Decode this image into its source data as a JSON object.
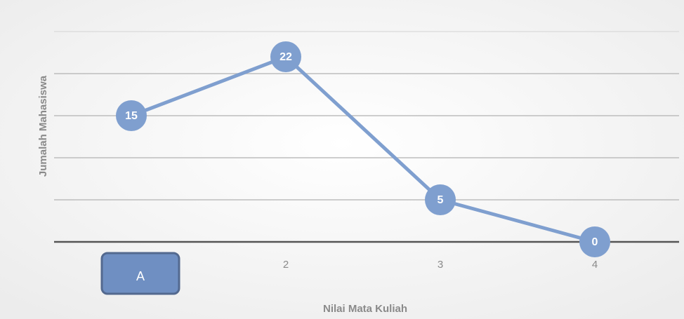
{
  "chart_data": {
    "type": "line",
    "categories": [
      "A",
      "2",
      "3",
      "4"
    ],
    "series": [
      {
        "name": "Jumalah Mahasiswa",
        "color": "#7f9fcf",
        "values": [
          15,
          22,
          5,
          0
        ]
      }
    ],
    "ylim": [
      0,
      25
    ],
    "yticks": [
      0,
      5,
      10,
      15,
      20,
      25
    ],
    "grid": true,
    "y_label": "Jumalah Mahasiswa",
    "x_label": "Nilai Mata Kuliah"
  }
}
